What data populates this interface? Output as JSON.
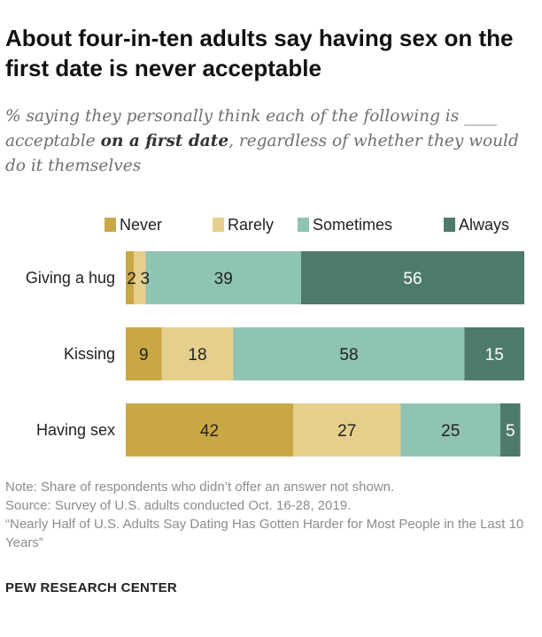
{
  "title": "About four-in-ten adults say having sex on the first date is never acceptable",
  "subtitle": {
    "before": "% saying they personally think each of the following is ____ acceptable ",
    "emphasis": "on a first date",
    "after": ", regardless of whether they would do it themselves"
  },
  "notes": {
    "note": "Note: Share of respondents who didn’t offer an answer not shown.",
    "source": "Source: Survey of U.S. adults conducted Oct. 16-28, 2019.",
    "report": "“Nearly Half of U.S. Adults Say Dating Has Gotten Harder for Most People in the Last 10 Years”"
  },
  "brand": "PEW RESEARCH CENTER",
  "chart_data": {
    "type": "bar",
    "orientation": "horizontal",
    "stacked": true,
    "categories": [
      "Giving a hug",
      "Kissing",
      "Having sex"
    ],
    "series": [
      {
        "name": "Never",
        "color": "#c9a745",
        "values": [
          2,
          9,
          42
        ]
      },
      {
        "name": "Rarely",
        "color": "#e5cf8d",
        "values": [
          3,
          18,
          27
        ]
      },
      {
        "name": "Sometimes",
        "color": "#8fc3b3",
        "values": [
          39,
          58,
          25
        ]
      },
      {
        "name": "Always",
        "color": "#4d7a6c",
        "values": [
          56,
          15,
          5
        ]
      }
    ],
    "data_labels": [
      [
        "2",
        "3",
        "39",
        "56"
      ],
      [
        "9",
        "18",
        "58",
        "15"
      ],
      [
        "42",
        "27",
        "25",
        "5"
      ]
    ],
    "legend_position": "top",
    "xlim": [
      0,
      100
    ],
    "grid": false
  }
}
